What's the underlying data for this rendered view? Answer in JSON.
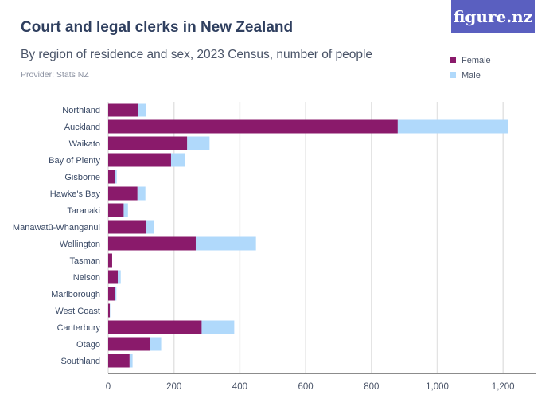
{
  "header": {
    "title": "Court and legal clerks in New Zealand",
    "subtitle": "By region of residence and sex, 2023 Census, number of people",
    "provider": "Provider: Stats NZ",
    "logo": "figure.nz"
  },
  "colors": {
    "female": "#8a1a6b",
    "male": "#b0d9fb"
  },
  "chart_data": {
    "type": "bar",
    "orientation": "horizontal",
    "stacked": true,
    "title": "Court and legal clerks in New Zealand",
    "subtitle": "By region of residence and sex, 2023 Census, number of people",
    "categories": [
      "Northland",
      "Auckland",
      "Waikato",
      "Bay of Plenty",
      "Gisborne",
      "Hawke's Bay",
      "Taranaki",
      "Manawatū-Whanganui",
      "Wellington",
      "Tasman",
      "Nelson",
      "Marlborough",
      "West Coast",
      "Canterbury",
      "Otago",
      "Southland"
    ],
    "series": [
      {
        "name": "Female",
        "values": [
          92,
          880,
          240,
          191,
          20,
          89,
          47,
          114,
          266,
          12,
          29,
          20,
          5,
          284,
          128,
          65
        ]
      },
      {
        "name": "Male",
        "values": [
          24,
          334,
          68,
          42,
          6,
          24,
          13,
          26,
          183,
          0,
          9,
          5,
          1,
          99,
          33,
          9
        ]
      }
    ],
    "xlim": [
      0,
      1300
    ],
    "xticks": [
      "0",
      "200",
      "400",
      "600",
      "800",
      "1,000",
      "1,200"
    ],
    "grid": true,
    "legend": "top-right"
  }
}
